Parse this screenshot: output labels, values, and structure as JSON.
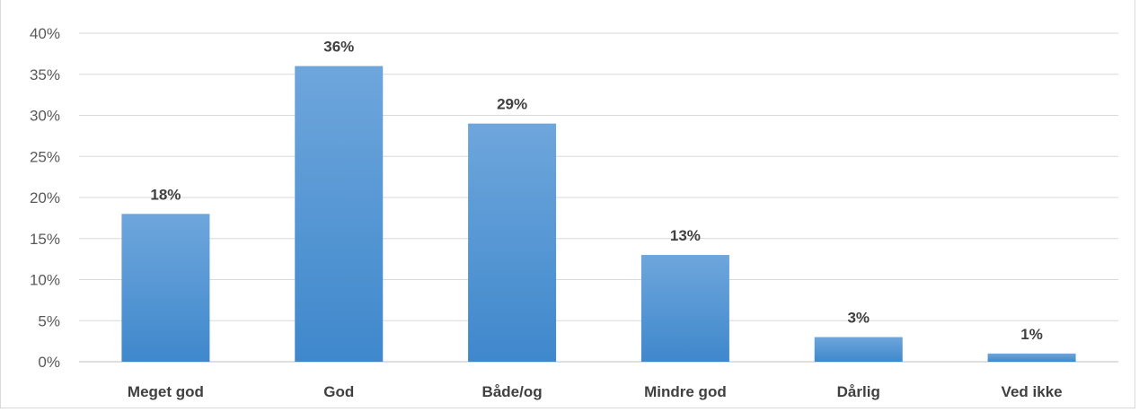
{
  "chart_data": {
    "type": "bar",
    "title": "",
    "categories": [
      "Meget god",
      "God",
      "Både/og",
      "Mindre god",
      "Dårlig",
      "Ved ikke"
    ],
    "values": [
      18,
      36,
      29,
      13,
      3,
      1
    ],
    "value_labels": [
      "18%",
      "36%",
      "29%",
      "13%",
      "3%",
      "1%"
    ],
    "y_ticks": [
      "0%",
      "5%",
      "10%",
      "15%",
      "20%",
      "25%",
      "30%",
      "35%",
      "40%"
    ],
    "ylim": [
      0,
      40
    ],
    "grid": true,
    "bar_color": "#5b9bd5"
  }
}
